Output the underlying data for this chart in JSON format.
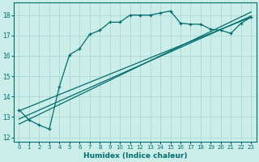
{
  "xlabel": "Humidex (Indice chaleur)",
  "bg_color": "#cceee9",
  "grid_color": "#aad8d2",
  "line_color": "#006e6e",
  "xlim": [
    -0.5,
    23.5
  ],
  "ylim": [
    11.8,
    18.6
  ],
  "yticks": [
    12,
    13,
    14,
    15,
    16,
    17,
    18
  ],
  "xticks": [
    0,
    1,
    2,
    3,
    4,
    5,
    6,
    7,
    8,
    9,
    10,
    11,
    12,
    13,
    14,
    15,
    16,
    17,
    18,
    19,
    20,
    21,
    22,
    23
  ],
  "series1_x": [
    0,
    1,
    2,
    3,
    4,
    5,
    6,
    7,
    8,
    9,
    10,
    11,
    12,
    13,
    14,
    15,
    16,
    17,
    18,
    19,
    20,
    21,
    22,
    23
  ],
  "series1_y": [
    13.35,
    12.85,
    12.6,
    12.4,
    14.5,
    16.05,
    16.35,
    17.05,
    17.25,
    17.65,
    17.65,
    18.0,
    18.0,
    18.0,
    18.1,
    18.2,
    17.6,
    17.55,
    17.55,
    17.3,
    17.25,
    17.1,
    17.6,
    17.9
  ],
  "line2_x": [
    0,
    23
  ],
  "line2_y": [
    13.3,
    17.9
  ],
  "line3_x": [
    0,
    23
  ],
  "line3_y": [
    12.9,
    17.95
  ],
  "line4_x": [
    0,
    23
  ],
  "line4_y": [
    12.65,
    18.15
  ]
}
